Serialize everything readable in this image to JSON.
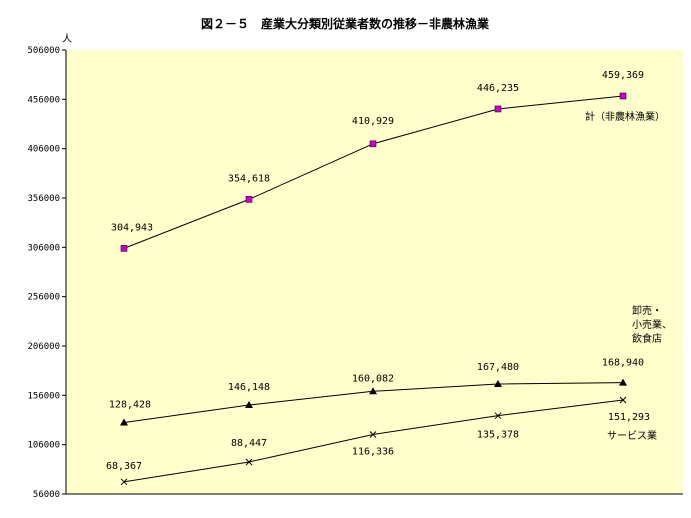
{
  "chart_data": {
    "type": "line",
    "title": "図２－５　産業大分類別従業者数の推移－非農林漁業",
    "y_unit": "人",
    "ylim": [
      56000,
      506000
    ],
    "y_ticks": [
      "506000",
      "456000",
      "406000",
      "356000",
      "306000",
      "256000",
      "206000",
      "156000",
      "106000",
      "56000"
    ],
    "x_points": 5,
    "grid": false,
    "plot_background": "#ffffcc",
    "series": [
      {
        "name": "計（非農林漁業）",
        "marker": "square",
        "marker_color": "#cc00cc",
        "values": [
          304943,
          354618,
          410929,
          446235,
          459369
        ],
        "labels": [
          "304,943",
          "354,618",
          "410,929",
          "446,235",
          "459,369"
        ]
      },
      {
        "name": "卸売・\n小売業、\n飲食店",
        "name_lines": [
          "卸売・",
          "小売業、",
          "飲食店"
        ],
        "marker": "triangle",
        "marker_color": "#000000",
        "values": [
          128428,
          146148,
          160082,
          167480,
          168940
        ],
        "labels": [
          "128,428",
          "146,148",
          "160,082",
          "167,480",
          "168,940"
        ]
      },
      {
        "name": "サービス業",
        "marker": "x",
        "marker_color": "#000000",
        "values": [
          68367,
          88447,
          116336,
          135378,
          151293
        ],
        "labels": [
          "68,367",
          "88,447",
          "116,336",
          "135,378",
          "151,293"
        ]
      }
    ]
  }
}
